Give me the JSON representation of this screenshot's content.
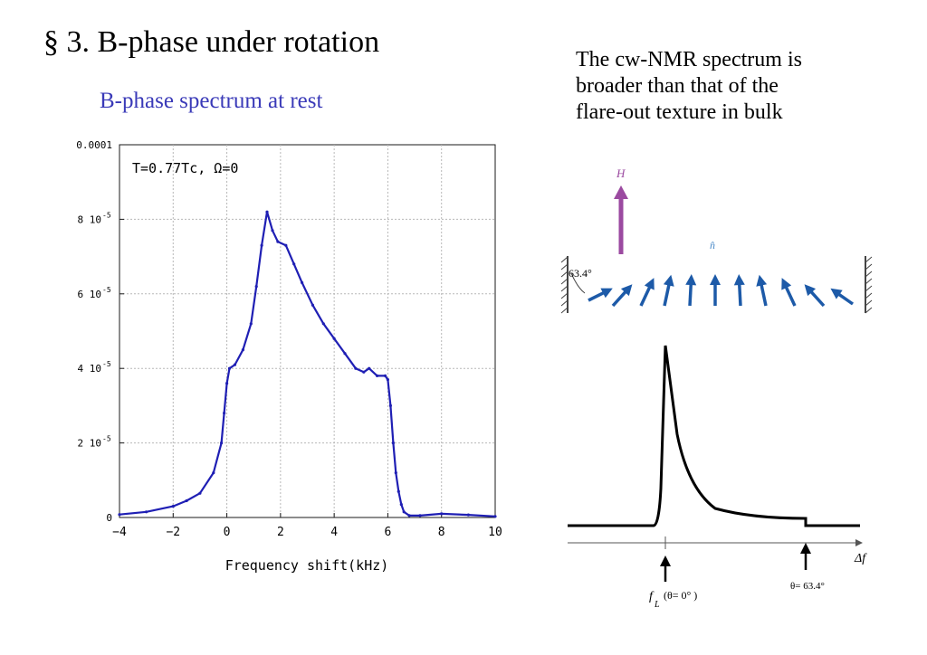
{
  "slide": {
    "title": "§ 3.  B-phase under rotation",
    "subtitle": "B-phase spectrum at rest",
    "description": [
      "The cw-NMR spectrum is",
      "broader than that of the",
      "flare-out texture in bulk"
    ]
  },
  "chart_data": {
    "type": "scatter",
    "title": "",
    "annotation": "T=0.77Tc, Ω=0",
    "xlabel": "Frequency shift(kHz)",
    "ylabel": "",
    "xlim": [
      -4,
      10
    ],
    "ylim": [
      0,
      0.0001
    ],
    "x_ticks": [
      "-4",
      "-2",
      "0",
      "2",
      "4",
      "6",
      "8",
      "10"
    ],
    "y_ticks": [
      {
        "value": 0,
        "label": "0",
        "exp": ""
      },
      {
        "value": 2e-05,
        "label": "2 10",
        "exp": "-5"
      },
      {
        "value": 4e-05,
        "label": "4 10",
        "exp": "-5"
      },
      {
        "value": 6e-05,
        "label": "6 10",
        "exp": "-5"
      },
      {
        "value": 8e-05,
        "label": "8 10",
        "exp": "-5"
      },
      {
        "value": 0.0001,
        "label": "0.0001",
        "exp": ""
      }
    ],
    "grid": true,
    "color": "#1f1fb4",
    "series": [
      {
        "x": [
          -4.0,
          -3.0,
          -2.0,
          -1.5,
          -1.0,
          -0.5,
          -0.2,
          -0.1,
          0.0,
          0.1,
          0.3,
          0.6,
          0.9,
          1.1,
          1.3,
          1.5,
          1.7,
          1.9,
          2.2,
          2.5,
          2.8,
          3.2,
          3.6,
          4.0,
          4.4,
          4.8,
          5.1,
          5.3,
          5.6,
          5.9,
          6.0,
          6.1,
          6.2,
          6.3,
          6.4,
          6.5,
          6.6,
          6.8,
          7.2,
          8.0,
          9.0,
          10.0
        ],
        "y": [
          8e-07,
          1.5e-06,
          3e-06,
          4.5e-06,
          6.5e-06,
          1.2e-05,
          2e-05,
          2.8e-05,
          3.6e-05,
          4e-05,
          4.1e-05,
          4.5e-05,
          5.2e-05,
          6.2e-05,
          7.3e-05,
          8.2e-05,
          7.7e-05,
          7.4e-05,
          7.3e-05,
          6.8e-05,
          6.3e-05,
          5.7e-05,
          5.2e-05,
          4.8e-05,
          4.4e-05,
          4e-05,
          3.9e-05,
          4e-05,
          3.8e-05,
          3.8e-05,
          3.7e-05,
          3e-05,
          2e-05,
          1.2e-05,
          7e-06,
          3.5e-06,
          1.5e-06,
          5e-07,
          5e-07,
          1e-06,
          7e-07,
          3e-07
        ]
      }
    ]
  },
  "diagram": {
    "field_label": "H",
    "n_label": "n̂",
    "angle_label": "63.4°",
    "delta_f_label": "Δf",
    "fl_label": "f",
    "fl_sub": "L",
    "fl_paren": "(θ= 0°  )",
    "theta_label": "θ= 63.4°",
    "arrow_color": "#1d5aa8",
    "field_color": "#9b4aa0"
  }
}
